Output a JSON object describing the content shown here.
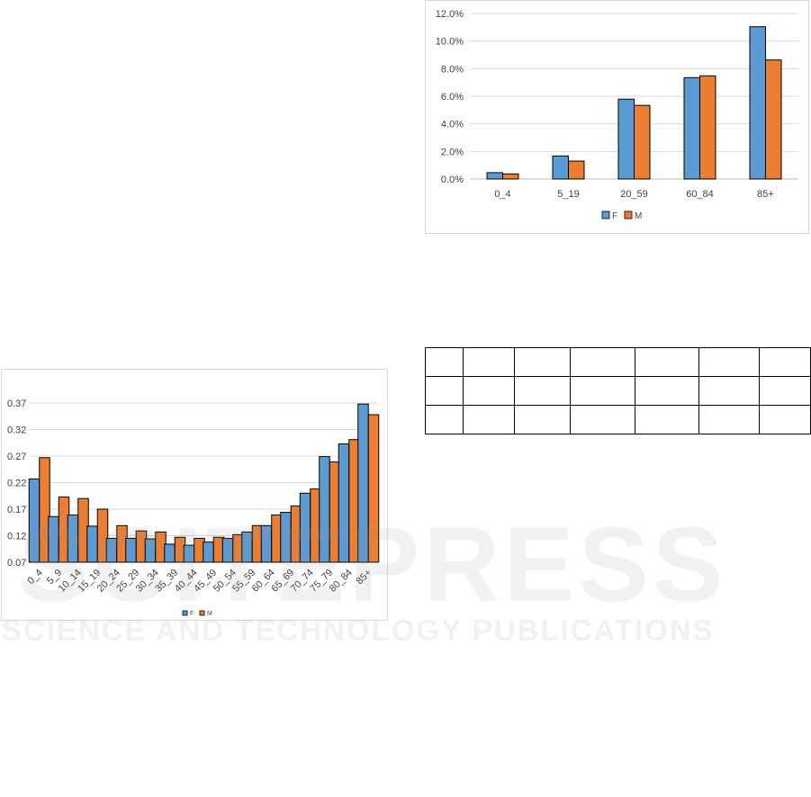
{
  "chart_data": [
    {
      "type": "bar",
      "categories": [
        "0_4",
        "5_19",
        "20_59",
        "60_84",
        "85+"
      ],
      "series": [
        {
          "name": "F",
          "values": [
            0.46,
            1.67,
            5.79,
            7.35,
            11.04
          ]
        },
        {
          "name": "M",
          "values": [
            0.37,
            1.3,
            5.34,
            7.48,
            8.63
          ]
        }
      ],
      "ylim": [
        0,
        12
      ],
      "yticks": [
        "0.0%",
        "2.0%",
        "4.0%",
        "6.0%",
        "8.0%",
        "10.0%",
        "12.0%"
      ],
      "y_unit": "%",
      "grid": true,
      "legend": "bottom",
      "colors": {
        "F": "#5b9bd5",
        "M": "#ed7d31"
      }
    },
    {
      "type": "bar",
      "categories": [
        "0_4",
        "5_9",
        "10_14",
        "15_19",
        "20_24",
        "25_29",
        "30_34",
        "35_39",
        "40_44",
        "45_49",
        "50_54",
        "55_59",
        "60_64",
        "65_69",
        "70_74",
        "75_79",
        "80_84",
        "85+"
      ],
      "series": [
        {
          "name": "F",
          "values": [
            0.227,
            0.156,
            0.159,
            0.138,
            0.115,
            0.115,
            0.114,
            0.104,
            0.102,
            0.108,
            0.115,
            0.127,
            0.139,
            0.164,
            0.2,
            0.269,
            0.293,
            0.368
          ]
        },
        {
          "name": "M",
          "values": [
            0.267,
            0.193,
            0.19,
            0.17,
            0.139,
            0.129,
            0.127,
            0.117,
            0.115,
            0.117,
            0.122,
            0.139,
            0.159,
            0.176,
            0.208,
            0.259,
            0.301,
            0.348
          ]
        }
      ],
      "ylim": [
        0.07,
        0.37
      ],
      "yticks": [
        "0.07",
        "0.12",
        "0.17",
        "0.22",
        "0.27",
        "0.32",
        "0.37"
      ],
      "grid": true,
      "legend": "bottom",
      "colors": {
        "F": "#5b9bd5",
        "M": "#ed7d31"
      }
    }
  ],
  "table": {
    "rows": 3,
    "columns": 7
  },
  "watermark": {
    "title": "SCITEPRESS",
    "subtitle": "SCIENCE AND TECHNOLOGY PUBLICATIONS"
  }
}
